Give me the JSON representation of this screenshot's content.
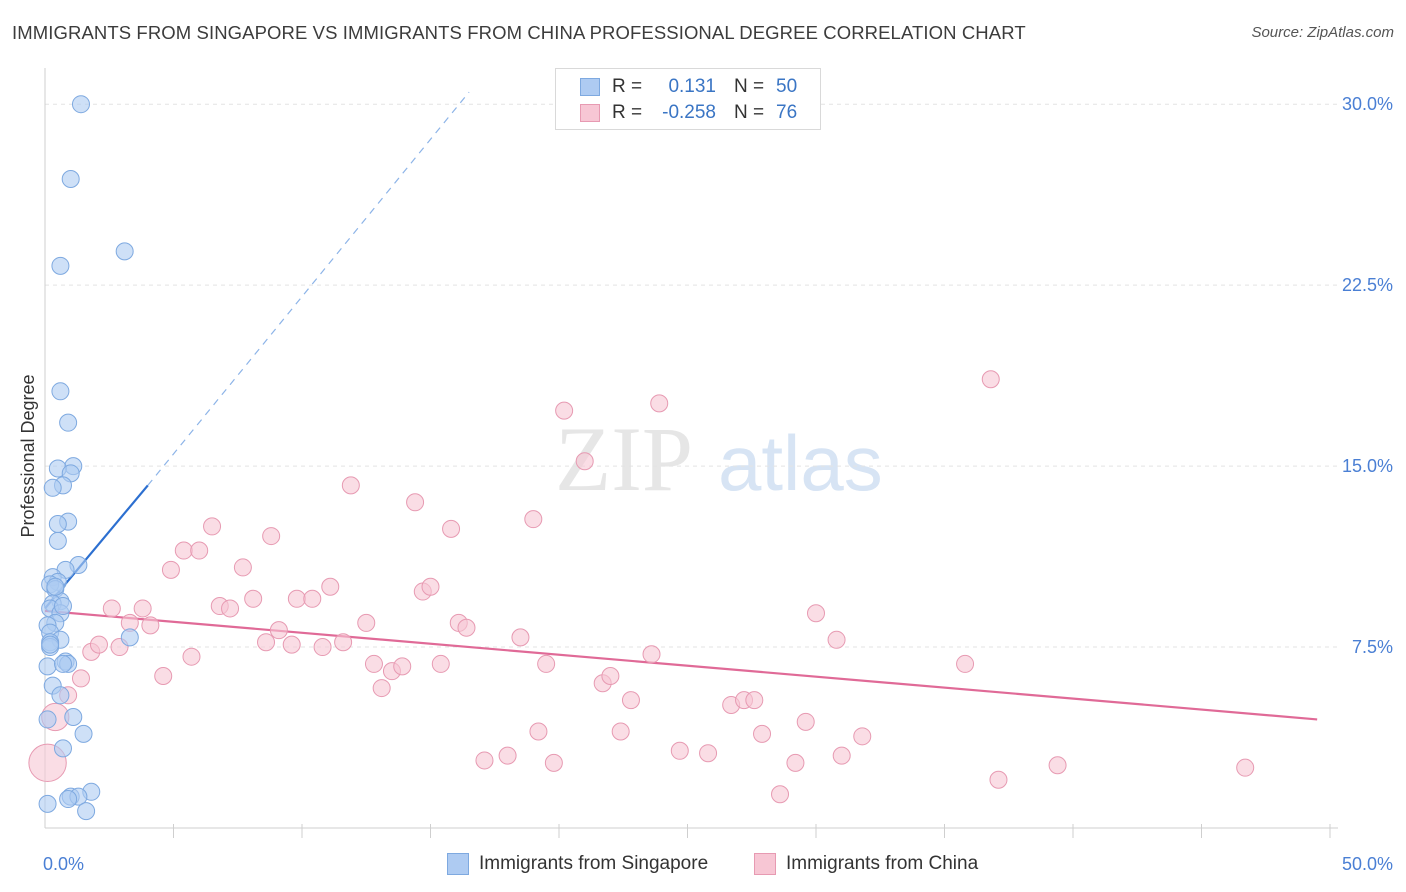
{
  "title": "IMMIGRANTS FROM SINGAPORE VS IMMIGRANTS FROM CHINA PROFESSIONAL DEGREE CORRELATION CHART",
  "source": "Source: ZipAtlas.com",
  "watermark": {
    "zip": "ZIP",
    "atlas": "atlas"
  },
  "stats": {
    "singapore": {
      "r_label": "R =",
      "r_value": "0.131",
      "n_label": "N =",
      "n_value": "50"
    },
    "china": {
      "r_label": "R =",
      "r_value": "-0.258",
      "n_label": "N =",
      "n_value": "76"
    }
  },
  "legend": {
    "singapore": "Immigrants from Singapore",
    "china": "Immigrants from China"
  },
  "colors": {
    "singapore_fill": "#aecbf2",
    "singapore_stroke": "#7ea9e0",
    "singapore_line": "#2c6fd0",
    "china_fill": "#f7c6d4",
    "china_stroke": "#e79ab2",
    "china_line": "#e06a97",
    "tick_text": "#4a7fd4",
    "grid": "#e3e3e3"
  },
  "chart_data": {
    "type": "scatter",
    "title": "IMMIGRANTS FROM SINGAPORE VS IMMIGRANTS FROM CHINA PROFESSIONAL DEGREE CORRELATION CHART",
    "xlabel": "",
    "ylabel": "Professional Degree",
    "xlim": [
      0,
      50
    ],
    "ylim": [
      0,
      31.5
    ],
    "x_tick_labels": [
      {
        "value": 0,
        "label": "0.0%"
      },
      {
        "value": 50,
        "label": "50.0%"
      }
    ],
    "y_tick_labels": [
      {
        "value": 7.5,
        "label": "7.5%"
      },
      {
        "value": 15,
        "label": "15.0%"
      },
      {
        "value": 22.5,
        "label": "22.5%"
      },
      {
        "value": 30,
        "label": "30.0%"
      }
    ],
    "x_minor_ticks": [
      5,
      10,
      15,
      20,
      25,
      30,
      35,
      40,
      45
    ],
    "grid": true,
    "series": [
      {
        "name": "Immigrants from Singapore",
        "r": 0.131,
        "n": 50,
        "trend": {
          "x0": 0,
          "y0": 9.1,
          "x1": 4.0,
          "y1": 14.2,
          "dash_to_x": 16.5,
          "dash_to_y": 30.5
        },
        "points": [
          {
            "x": 1.4,
            "y": 30.0,
            "s": 1
          },
          {
            "x": 1.0,
            "y": 26.9,
            "s": 1
          },
          {
            "x": 3.1,
            "y": 23.9,
            "s": 1
          },
          {
            "x": 0.6,
            "y": 23.3,
            "s": 1
          },
          {
            "x": 0.6,
            "y": 18.1,
            "s": 1
          },
          {
            "x": 0.9,
            "y": 16.8,
            "s": 1
          },
          {
            "x": 1.1,
            "y": 15.0,
            "s": 1
          },
          {
            "x": 0.5,
            "y": 14.9,
            "s": 1
          },
          {
            "x": 1.0,
            "y": 14.7,
            "s": 1
          },
          {
            "x": 0.7,
            "y": 14.2,
            "s": 1
          },
          {
            "x": 0.3,
            "y": 14.1,
            "s": 1
          },
          {
            "x": 0.9,
            "y": 12.7,
            "s": 1
          },
          {
            "x": 0.5,
            "y": 12.6,
            "s": 1
          },
          {
            "x": 0.5,
            "y": 11.9,
            "s": 1
          },
          {
            "x": 1.3,
            "y": 10.9,
            "s": 1
          },
          {
            "x": 0.8,
            "y": 10.7,
            "s": 1
          },
          {
            "x": 0.3,
            "y": 10.4,
            "s": 1
          },
          {
            "x": 0.5,
            "y": 10.2,
            "s": 1
          },
          {
            "x": 0.2,
            "y": 10.1,
            "s": 1
          },
          {
            "x": 0.4,
            "y": 9.9,
            "s": 1
          },
          {
            "x": 0.6,
            "y": 9.4,
            "s": 1
          },
          {
            "x": 0.3,
            "y": 9.3,
            "s": 1
          },
          {
            "x": 0.2,
            "y": 9.1,
            "s": 1
          },
          {
            "x": 0.6,
            "y": 8.9,
            "s": 1
          },
          {
            "x": 0.4,
            "y": 8.5,
            "s": 1
          },
          {
            "x": 0.1,
            "y": 8.4,
            "s": 1
          },
          {
            "x": 0.2,
            "y": 8.1,
            "s": 1
          },
          {
            "x": 3.3,
            "y": 7.9,
            "s": 1
          },
          {
            "x": 0.6,
            "y": 7.8,
            "s": 1
          },
          {
            "x": 0.2,
            "y": 7.7,
            "s": 1
          },
          {
            "x": 0.2,
            "y": 7.5,
            "s": 1
          },
          {
            "x": 0.8,
            "y": 6.9,
            "s": 1
          },
          {
            "x": 0.9,
            "y": 6.8,
            "s": 1
          },
          {
            "x": 0.1,
            "y": 6.7,
            "s": 1
          },
          {
            "x": 0.7,
            "y": 6.8,
            "s": 1
          },
          {
            "x": 0.3,
            "y": 5.9,
            "s": 1
          },
          {
            "x": 0.6,
            "y": 5.5,
            "s": 1
          },
          {
            "x": 1.1,
            "y": 4.6,
            "s": 1
          },
          {
            "x": 0.1,
            "y": 4.5,
            "s": 1
          },
          {
            "x": 1.5,
            "y": 3.9,
            "s": 1
          },
          {
            "x": 0.7,
            "y": 3.3,
            "s": 1
          },
          {
            "x": 1.8,
            "y": 1.5,
            "s": 1
          },
          {
            "x": 1.0,
            "y": 1.3,
            "s": 1
          },
          {
            "x": 1.3,
            "y": 1.3,
            "s": 1
          },
          {
            "x": 1.6,
            "y": 0.7,
            "s": 1
          },
          {
            "x": 0.9,
            "y": 1.2,
            "s": 1
          },
          {
            "x": 0.1,
            "y": 1.0,
            "s": 1
          },
          {
            "x": 0.2,
            "y": 7.6,
            "s": 1
          },
          {
            "x": 0.4,
            "y": 10.0,
            "s": 1
          },
          {
            "x": 0.7,
            "y": 9.2,
            "s": 1
          }
        ]
      },
      {
        "name": "Immigrants from China",
        "r": -0.258,
        "n": 76,
        "trend": {
          "x0": 0,
          "y0": 9.0,
          "x1": 49.5,
          "y1": 4.5
        },
        "points": [
          {
            "x": 0.1,
            "y": 2.7,
            "s": 2.2
          },
          {
            "x": 0.4,
            "y": 4.6,
            "s": 1.6
          },
          {
            "x": 0.9,
            "y": 5.5,
            "s": 1
          },
          {
            "x": 1.4,
            "y": 6.2,
            "s": 1
          },
          {
            "x": 1.8,
            "y": 7.3,
            "s": 1
          },
          {
            "x": 2.1,
            "y": 7.6,
            "s": 1
          },
          {
            "x": 2.6,
            "y": 9.1,
            "s": 1
          },
          {
            "x": 2.9,
            "y": 7.5,
            "s": 1
          },
          {
            "x": 3.3,
            "y": 8.5,
            "s": 1
          },
          {
            "x": 3.8,
            "y": 9.1,
            "s": 1
          },
          {
            "x": 4.1,
            "y": 8.4,
            "s": 1
          },
          {
            "x": 4.6,
            "y": 6.3,
            "s": 1
          },
          {
            "x": 4.9,
            "y": 10.7,
            "s": 1
          },
          {
            "x": 5.4,
            "y": 11.5,
            "s": 1
          },
          {
            "x": 5.7,
            "y": 7.1,
            "s": 1
          },
          {
            "x": 6.0,
            "y": 11.5,
            "s": 1
          },
          {
            "x": 6.5,
            "y": 12.5,
            "s": 1
          },
          {
            "x": 6.8,
            "y": 9.2,
            "s": 1
          },
          {
            "x": 7.2,
            "y": 9.1,
            "s": 1
          },
          {
            "x": 7.7,
            "y": 10.8,
            "s": 1
          },
          {
            "x": 8.1,
            "y": 9.5,
            "s": 1
          },
          {
            "x": 8.6,
            "y": 7.7,
            "s": 1
          },
          {
            "x": 8.8,
            "y": 12.1,
            "s": 1
          },
          {
            "x": 9.1,
            "y": 8.2,
            "s": 1
          },
          {
            "x": 9.6,
            "y": 7.6,
            "s": 1
          },
          {
            "x": 9.8,
            "y": 9.5,
            "s": 1
          },
          {
            "x": 10.4,
            "y": 9.5,
            "s": 1
          },
          {
            "x": 10.8,
            "y": 7.5,
            "s": 1
          },
          {
            "x": 11.1,
            "y": 10.0,
            "s": 1
          },
          {
            "x": 11.6,
            "y": 7.7,
            "s": 1
          },
          {
            "x": 11.9,
            "y": 14.2,
            "s": 1
          },
          {
            "x": 12.5,
            "y": 8.5,
            "s": 1
          },
          {
            "x": 12.8,
            "y": 6.8,
            "s": 1
          },
          {
            "x": 13.1,
            "y": 5.8,
            "s": 1
          },
          {
            "x": 13.5,
            "y": 6.5,
            "s": 1
          },
          {
            "x": 13.9,
            "y": 6.7,
            "s": 1
          },
          {
            "x": 14.4,
            "y": 13.5,
            "s": 1
          },
          {
            "x": 14.7,
            "y": 9.8,
            "s": 1
          },
          {
            "x": 15.0,
            "y": 10.0,
            "s": 1
          },
          {
            "x": 15.4,
            "y": 6.8,
            "s": 1
          },
          {
            "x": 15.8,
            "y": 12.4,
            "s": 1
          },
          {
            "x": 16.1,
            "y": 8.5,
            "s": 1
          },
          {
            "x": 16.4,
            "y": 8.3,
            "s": 1
          },
          {
            "x": 17.1,
            "y": 2.8,
            "s": 1
          },
          {
            "x": 18.0,
            "y": 3.0,
            "s": 1
          },
          {
            "x": 18.5,
            "y": 7.9,
            "s": 1
          },
          {
            "x": 19.0,
            "y": 12.8,
            "s": 1
          },
          {
            "x": 19.2,
            "y": 4.0,
            "s": 1
          },
          {
            "x": 19.5,
            "y": 6.8,
            "s": 1
          },
          {
            "x": 19.8,
            "y": 2.7,
            "s": 1
          },
          {
            "x": 20.2,
            "y": 17.3,
            "s": 1
          },
          {
            "x": 21.0,
            "y": 15.2,
            "s": 1
          },
          {
            "x": 21.7,
            "y": 6.0,
            "s": 1
          },
          {
            "x": 22.0,
            "y": 6.3,
            "s": 1
          },
          {
            "x": 22.4,
            "y": 4.0,
            "s": 1
          },
          {
            "x": 22.8,
            "y": 5.3,
            "s": 1
          },
          {
            "x": 23.6,
            "y": 7.2,
            "s": 1
          },
          {
            "x": 23.9,
            "y": 17.6,
            "s": 1
          },
          {
            "x": 24.7,
            "y": 3.2,
            "s": 1
          },
          {
            "x": 25.8,
            "y": 3.1,
            "s": 1
          },
          {
            "x": 26.7,
            "y": 5.1,
            "s": 1
          },
          {
            "x": 27.2,
            "y": 5.3,
            "s": 1
          },
          {
            "x": 27.6,
            "y": 5.3,
            "s": 1
          },
          {
            "x": 27.9,
            "y": 3.9,
            "s": 1
          },
          {
            "x": 28.6,
            "y": 1.4,
            "s": 1
          },
          {
            "x": 29.2,
            "y": 2.7,
            "s": 1
          },
          {
            "x": 29.6,
            "y": 4.4,
            "s": 1
          },
          {
            "x": 30.0,
            "y": 8.9,
            "s": 1
          },
          {
            "x": 30.8,
            "y": 7.8,
            "s": 1
          },
          {
            "x": 31.0,
            "y": 3.0,
            "s": 1
          },
          {
            "x": 31.8,
            "y": 3.8,
            "s": 1
          },
          {
            "x": 36.8,
            "y": 18.6,
            "s": 1
          },
          {
            "x": 35.8,
            "y": 6.8,
            "s": 1
          },
          {
            "x": 37.1,
            "y": 2.0,
            "s": 1
          },
          {
            "x": 39.4,
            "y": 2.6,
            "s": 1
          },
          {
            "x": 46.7,
            "y": 2.5,
            "s": 1
          }
        ]
      }
    ]
  }
}
